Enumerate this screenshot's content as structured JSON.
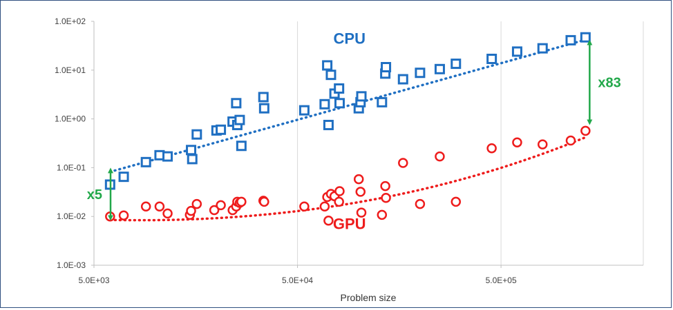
{
  "chart_data": {
    "type": "scatter",
    "title": "",
    "xlabel": "Problem size",
    "ylabel": "",
    "xscale": "log",
    "yscale": "log",
    "xlim": [
      5000,
      2500000
    ],
    "ylim": [
      0.001,
      100
    ],
    "x_ticks": [
      5000,
      50000,
      500000
    ],
    "x_tick_labels": [
      "5.0E+03",
      "5.0E+04",
      "5.0E+05"
    ],
    "y_ticks": [
      0.001,
      0.01,
      0.1,
      1,
      10,
      100
    ],
    "y_tick_labels": [
      "1.0E-03",
      "1.0E-02",
      "1.0E-01",
      "1.0E+00",
      "1.0E+01",
      "1.0E+02"
    ],
    "grid": "vertical",
    "series": [
      {
        "name": "CPU",
        "marker": "square",
        "color": "#1f6fc2",
        "points": [
          [
            6000,
            0.045
          ],
          [
            7000,
            0.065
          ],
          [
            9000,
            0.13
          ],
          [
            10500,
            0.18
          ],
          [
            11500,
            0.17
          ],
          [
            15000,
            0.23
          ],
          [
            15200,
            0.15
          ],
          [
            16000,
            0.48
          ],
          [
            20000,
            0.58
          ],
          [
            21000,
            0.6
          ],
          [
            24000,
            0.88
          ],
          [
            25000,
            2.1
          ],
          [
            25300,
            0.75
          ],
          [
            26000,
            0.95
          ],
          [
            26500,
            0.28
          ],
          [
            34000,
            2.8
          ],
          [
            34300,
            1.65
          ],
          [
            54000,
            1.5
          ],
          [
            68000,
            2.0
          ],
          [
            70000,
            12.5
          ],
          [
            71000,
            0.75
          ],
          [
            73000,
            8.0
          ],
          [
            76000,
            3.3
          ],
          [
            80000,
            4.2
          ],
          [
            80500,
            2.1
          ],
          [
            100000,
            1.65
          ],
          [
            102000,
            2.2
          ],
          [
            103000,
            2.9
          ],
          [
            130000,
            2.2
          ],
          [
            135000,
            8.5
          ],
          [
            136000,
            11.5
          ],
          [
            165000,
            6.5
          ],
          [
            200000,
            8.8
          ],
          [
            250000,
            10.5
          ],
          [
            300000,
            13.5
          ],
          [
            450000,
            17.0
          ],
          [
            600000,
            24.0
          ],
          [
            800000,
            28.0
          ],
          [
            1100000,
            41.0
          ],
          [
            1300000,
            47.0
          ]
        ],
        "trendline": {
          "type": "dotted",
          "from": [
            6000,
            0.082
          ],
          "to": [
            1300000,
            42.0
          ]
        }
      },
      {
        "name": "GPU",
        "marker": "circle",
        "color": "#ee1c1c",
        "points": [
          [
            6000,
            0.01
          ],
          [
            7000,
            0.0105
          ],
          [
            9000,
            0.016
          ],
          [
            10500,
            0.016
          ],
          [
            11500,
            0.0115
          ],
          [
            14800,
            0.0108
          ],
          [
            15000,
            0.013
          ],
          [
            16000,
            0.018
          ],
          [
            19500,
            0.0135
          ],
          [
            21000,
            0.017
          ],
          [
            24000,
            0.0135
          ],
          [
            25000,
            0.016
          ],
          [
            25300,
            0.02
          ],
          [
            26000,
            0.019
          ],
          [
            26500,
            0.02
          ],
          [
            34000,
            0.021
          ],
          [
            34300,
            0.02
          ],
          [
            54000,
            0.016
          ],
          [
            68000,
            0.016
          ],
          [
            70000,
            0.025
          ],
          [
            71000,
            0.0082
          ],
          [
            73000,
            0.029
          ],
          [
            76000,
            0.026
          ],
          [
            80000,
            0.02
          ],
          [
            80500,
            0.033
          ],
          [
            100000,
            0.058
          ],
          [
            102000,
            0.032
          ],
          [
            103000,
            0.012
          ],
          [
            130000,
            0.0108
          ],
          [
            135000,
            0.042
          ],
          [
            136000,
            0.024
          ],
          [
            165000,
            0.125
          ],
          [
            200000,
            0.018
          ],
          [
            250000,
            0.17
          ],
          [
            300000,
            0.02
          ],
          [
            450000,
            0.25
          ],
          [
            600000,
            0.33
          ],
          [
            800000,
            0.3
          ],
          [
            1100000,
            0.36
          ],
          [
            1300000,
            0.57
          ]
        ],
        "trendline": {
          "type": "dotted",
          "from": [
            6000,
            0.0085
          ],
          "to": [
            1300000,
            0.42
          ]
        }
      }
    ],
    "annotations": [
      {
        "text": "CPU",
        "color": "#1f6fc2",
        "at": [
          90000,
          35
        ]
      },
      {
        "text": "GPU",
        "color": "#ee1c1c",
        "at": [
          90000,
          0.0055
        ]
      },
      {
        "text": "x5",
        "color": "#22a84a",
        "arrow_from": [
          5000,
          0.1
        ],
        "arrow_to": [
          5000,
          0.0082
        ]
      },
      {
        "text": "x83",
        "color": "#22a84a",
        "arrow_from": [
          1300000,
          42
        ],
        "arrow_to": [
          1300000,
          0.75
        ]
      }
    ]
  }
}
